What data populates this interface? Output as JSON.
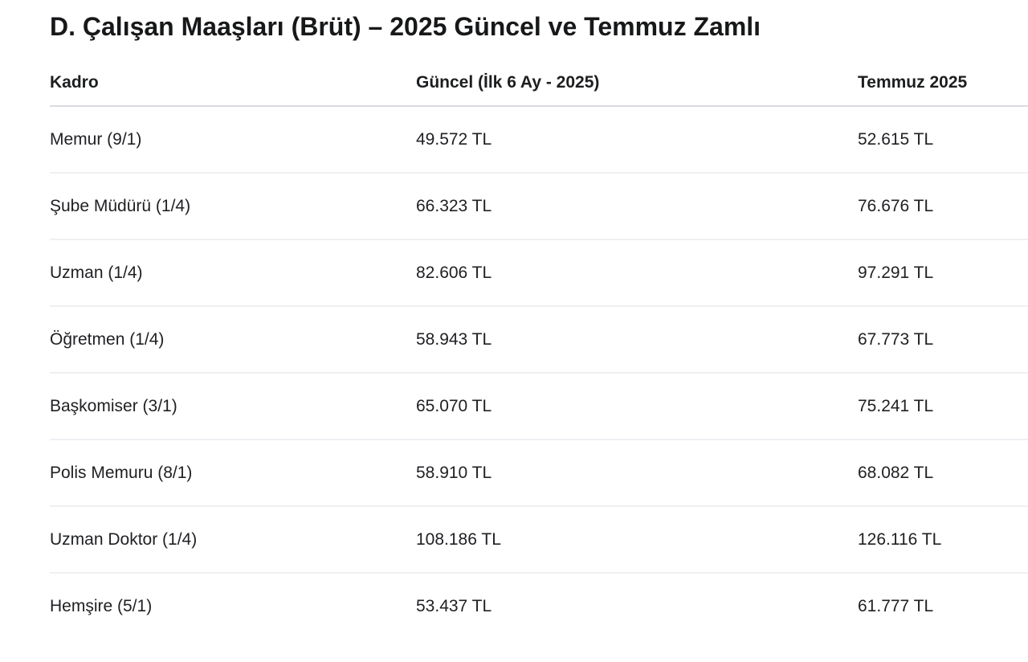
{
  "page": {
    "title": "D. Çalışan Maaşları (Brüt) – 2025 Güncel ve Temmuz Zamlı"
  },
  "colors": {
    "background": "#ffffff",
    "text": "#202124",
    "header_divider": "#d9dce0",
    "row_divider": "#eef0f2"
  },
  "table": {
    "columns": [
      "Kadro",
      "Güncel (İlk 6 Ay - 2025)",
      "Temmuz 2025"
    ],
    "rows": [
      {
        "kadro": "Memur (9/1)",
        "guncel": "49.572 TL",
        "temmuz": "52.615 TL"
      },
      {
        "kadro": "Şube Müdürü (1/4)",
        "guncel": "66.323 TL",
        "temmuz": "76.676 TL"
      },
      {
        "kadro": "Uzman (1/4)",
        "guncel": "82.606 TL",
        "temmuz": "97.291 TL"
      },
      {
        "kadro": "Öğretmen (1/4)",
        "guncel": "58.943 TL",
        "temmuz": "67.773 TL"
      },
      {
        "kadro": "Başkomiser (3/1)",
        "guncel": "65.070 TL",
        "temmuz": "75.241 TL"
      },
      {
        "kadro": "Polis Memuru (8/1)",
        "guncel": "58.910 TL",
        "temmuz": "68.082 TL"
      },
      {
        "kadro": "Uzman Doktor (1/4)",
        "guncel": "108.186 TL",
        "temmuz": "126.116 TL"
      },
      {
        "kadro": "Hemşire (5/1)",
        "guncel": "53.437 TL",
        "temmuz": "61.777 TL"
      }
    ]
  }
}
